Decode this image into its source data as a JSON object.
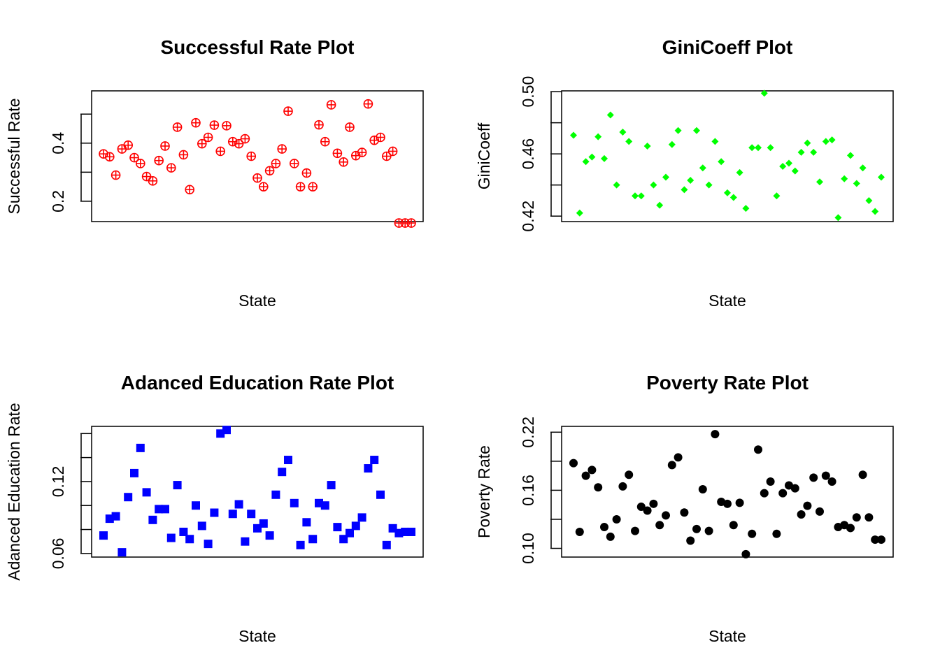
{
  "chart_data": [
    {
      "type": "scatter",
      "title": "Successful Rate Plot",
      "xlabel": "State",
      "ylabel": "Successful Rate",
      "xlim": [
        1,
        51
      ],
      "ylim": [
        0.13,
        0.58
      ],
      "yticks": [
        0.2,
        0.3,
        0.4,
        0.5
      ],
      "ytick_labels": [
        "0.2",
        "",
        "0.4",
        ""
      ],
      "marker": "circle-plus",
      "color": "#ff0000",
      "series": [
        {
          "x": [
            1,
            2,
            3,
            4,
            5,
            6,
            7,
            8,
            9,
            10,
            11,
            12,
            13,
            14,
            15,
            16,
            17,
            18,
            19,
            20,
            21,
            22,
            23,
            24,
            25,
            26,
            27,
            28,
            29,
            30,
            31,
            32,
            33,
            34,
            35,
            36,
            37,
            38,
            39,
            40,
            41,
            42,
            43,
            44,
            45,
            46,
            47,
            48,
            49,
            50,
            51
          ],
          "values": [
            0.363,
            0.353,
            0.29,
            0.38,
            0.393,
            0.35,
            0.33,
            0.285,
            0.27,
            0.34,
            0.39,
            0.315,
            0.455,
            0.36,
            0.24,
            0.47,
            0.398,
            0.42,
            0.462,
            0.372,
            0.46,
            0.405,
            0.398,
            0.415,
            0.355,
            0.28,
            0.25,
            0.305,
            0.33,
            0.38,
            0.51,
            0.33,
            0.25,
            0.297,
            0.25,
            0.463,
            0.405,
            0.532,
            0.365,
            0.335,
            0.455,
            0.357,
            0.368,
            0.535,
            0.41,
            0.42,
            0.355,
            0.372,
            0.125,
            0.125,
            0.125
          ]
        }
      ]
    },
    {
      "type": "scatter",
      "title": "GiniCoeff Plot",
      "xlabel": "State",
      "ylabel": "GiniCoeff",
      "xlim": [
        1,
        51
      ],
      "ylim": [
        0.4165,
        0.5005
      ],
      "yticks": [
        0.42,
        0.44,
        0.46,
        0.48,
        0.5
      ],
      "ytick_labels": [
        "0.42",
        "",
        "0.46",
        "",
        "0.50"
      ],
      "marker": "diamond",
      "color": "#00ff00",
      "series": [
        {
          "x": [
            1,
            2,
            3,
            4,
            5,
            6,
            7,
            8,
            9,
            10,
            11,
            12,
            13,
            14,
            15,
            16,
            17,
            18,
            19,
            20,
            21,
            22,
            23,
            24,
            25,
            26,
            27,
            28,
            29,
            30,
            31,
            32,
            33,
            34,
            35,
            36,
            37,
            38,
            39,
            40,
            41,
            42,
            43,
            44,
            45,
            46,
            47,
            48,
            49,
            50,
            51
          ],
          "values": [
            0.472,
            0.422,
            0.455,
            0.458,
            0.471,
            0.457,
            0.485,
            0.44,
            0.474,
            0.468,
            0.433,
            0.433,
            0.465,
            0.44,
            0.427,
            0.445,
            0.466,
            0.475,
            0.437,
            0.443,
            0.475,
            0.451,
            0.44,
            0.468,
            0.455,
            0.435,
            0.432,
            0.448,
            0.425,
            0.464,
            0.464,
            0.499,
            0.464,
            0.433,
            0.452,
            0.454,
            0.449,
            0.461,
            0.467,
            0.461,
            0.442,
            0.468,
            0.469,
            0.419,
            0.444,
            0.459,
            0.441,
            0.451,
            0.43,
            0.423,
            0.445
          ]
        }
      ]
    },
    {
      "type": "scatter",
      "title": "Adanced Education Rate Plot",
      "xlabel": "State",
      "ylabel": "Adanced Education Rate",
      "xlim": [
        1,
        51
      ],
      "ylim": [
        0.057,
        0.166
      ],
      "yticks": [
        0.06,
        0.08,
        0.1,
        0.12,
        0.14,
        0.16
      ],
      "ytick_labels": [
        "0.06",
        "",
        "",
        "0.12",
        "",
        ""
      ],
      "marker": "square",
      "color": "#0000ff",
      "series": [
        {
          "x": [
            1,
            2,
            3,
            4,
            5,
            6,
            7,
            8,
            9,
            10,
            11,
            12,
            13,
            14,
            15,
            16,
            17,
            18,
            19,
            20,
            21,
            22,
            23,
            24,
            25,
            26,
            27,
            28,
            29,
            30,
            31,
            32,
            33,
            34,
            35,
            36,
            37,
            38,
            39,
            40,
            41,
            42,
            43,
            44,
            45,
            46,
            47,
            48,
            49,
            50,
            51
          ],
          "values": [
            0.075,
            0.089,
            0.091,
            0.061,
            0.107,
            0.127,
            0.148,
            0.111,
            0.088,
            0.097,
            0.097,
            0.073,
            0.117,
            0.078,
            0.072,
            0.1,
            0.083,
            0.068,
            0.094,
            0.16,
            0.163,
            0.093,
            0.101,
            0.07,
            0.093,
            0.081,
            0.085,
            0.075,
            0.109,
            0.128,
            0.138,
            0.102,
            0.067,
            0.086,
            0.072,
            0.102,
            0.1,
            0.117,
            0.082,
            0.072,
            0.077,
            0.083,
            0.09,
            0.131,
            0.138,
            0.109,
            0.067,
            0.081,
            0.077,
            0.078,
            0.078
          ]
        }
      ]
    },
    {
      "type": "scatter",
      "title": "Poverty Rate Plot",
      "xlabel": "State",
      "ylabel": "Poverty Rate",
      "xlim": [
        1,
        51
      ],
      "ylim": [
        0.091,
        0.226
      ],
      "yticks": [
        0.1,
        0.13,
        0.16,
        0.19,
        0.22
      ],
      "ytick_labels": [
        "0.10",
        "",
        "0.16",
        "",
        "0.22"
      ],
      "marker": "circle",
      "color": "#000000",
      "series": [
        {
          "x": [
            1,
            2,
            3,
            4,
            5,
            6,
            7,
            8,
            9,
            10,
            11,
            12,
            13,
            14,
            15,
            16,
            17,
            18,
            19,
            20,
            21,
            22,
            23,
            24,
            25,
            26,
            27,
            28,
            29,
            30,
            31,
            32,
            33,
            34,
            35,
            36,
            37,
            38,
            39,
            40,
            41,
            42,
            43,
            44,
            45,
            46,
            47,
            48,
            49,
            50,
            51
          ],
          "values": [
            0.188,
            0.117,
            0.175,
            0.181,
            0.163,
            0.122,
            0.112,
            0.13,
            0.164,
            0.176,
            0.118,
            0.143,
            0.139,
            0.146,
            0.124,
            0.134,
            0.186,
            0.194,
            0.137,
            0.108,
            0.12,
            0.161,
            0.118,
            0.218,
            0.148,
            0.146,
            0.124,
            0.147,
            0.094,
            0.115,
            0.202,
            0.157,
            0.169,
            0.115,
            0.157,
            0.165,
            0.162,
            0.135,
            0.144,
            0.173,
            0.138,
            0.175,
            0.169,
            0.122,
            0.124,
            0.121,
            0.132,
            0.176,
            0.132,
            0.109,
            0.109
          ]
        }
      ]
    }
  ]
}
